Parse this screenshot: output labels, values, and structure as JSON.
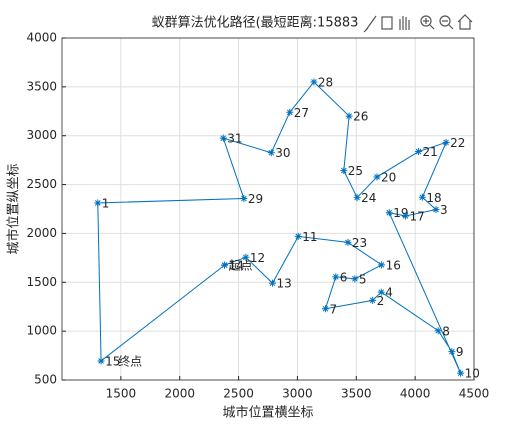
{
  "chart_data": {
    "type": "line",
    "title": "蚁群算法优化路径(最短距离:15883",
    "x_label": "城市位置横坐标",
    "y_label": "城市位置纵坐标",
    "color": "#0072bd",
    "grid": true,
    "start_label": "起点",
    "end_label": "终点",
    "labels": [
      "14",
      "12",
      "13",
      "11",
      "23",
      "16",
      "5",
      "6",
      "7",
      "2",
      "4",
      "8",
      "9",
      "10",
      "19",
      "17",
      "3",
      "18",
      "22",
      "21",
      "20",
      "24",
      "25",
      "26",
      "28",
      "27",
      "30",
      "31",
      "29",
      "1",
      "15",
      null
    ],
    "x": [
      2381,
      2562,
      2788,
      3007,
      3429,
      3715,
      3488,
      3326,
      3238,
      3639,
      3712,
      4196,
      4312,
      4386,
      3780,
      3918,
      4177,
      4061,
      4263,
      4029,
      3676,
      3507,
      3394,
      3439,
      3140,
      2935,
      2778,
      2370,
      2545,
      1304,
      1332,
      2381
    ],
    "values": [
      1676,
      1756,
      1491,
      1970,
      1908,
      1678,
      1535,
      1556,
      1229,
      1315,
      1399,
      1004,
      790,
      570,
      2212,
      2179,
      2244,
      2370,
      2931,
      2838,
      2578,
      2367,
      2643,
      3201,
      3550,
      3240,
      2826,
      2975,
      2357,
      2312,
      695,
      1676
    ],
    "xlim": [
      1000,
      4500
    ],
    "xticks": [
      1500,
      2000,
      2500,
      3000,
      3500,
      4000,
      4500
    ],
    "ylim": [
      500,
      4000
    ],
    "yticks": [
      500,
      1000,
      1500,
      2000,
      2500,
      3000,
      3500,
      4000
    ]
  }
}
